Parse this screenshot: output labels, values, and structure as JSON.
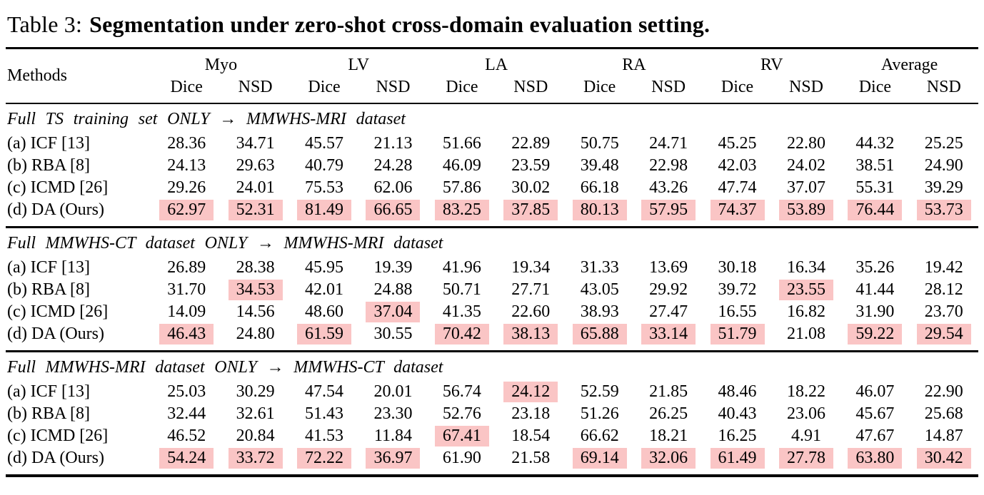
{
  "title": {
    "prefix": "Table 3:",
    "main": "Segmentation under zero-shot cross-domain evaluation setting."
  },
  "header": {
    "methods": "Methods",
    "groups": [
      "Myo",
      "LV",
      "LA",
      "RA",
      "RV",
      "Average"
    ],
    "metrics": [
      "Dice",
      "NSD"
    ]
  },
  "colors": {
    "highlight": "#fac5c5",
    "rule": "#000000"
  },
  "sections": [
    {
      "caption": "Full TS training set ONLY → MMWHS-MRI dataset",
      "rows": [
        {
          "method": "(a) ICF [13]",
          "values": [
            "28.36",
            "34.71",
            "45.57",
            "21.13",
            "51.66",
            "22.89",
            "50.75",
            "24.71",
            "45.25",
            "22.80",
            "44.32",
            "25.25"
          ],
          "highlights": []
        },
        {
          "method": "(b) RBA [8]",
          "values": [
            "24.13",
            "29.63",
            "40.79",
            "24.28",
            "46.09",
            "23.59",
            "39.48",
            "22.98",
            "42.03",
            "24.02",
            "38.51",
            "24.90"
          ],
          "highlights": []
        },
        {
          "method": "(c) ICMD [26]",
          "values": [
            "29.26",
            "24.01",
            "75.53",
            "62.06",
            "57.86",
            "30.02",
            "66.18",
            "43.26",
            "47.74",
            "37.07",
            "55.31",
            "39.29"
          ],
          "highlights": []
        },
        {
          "method": "(d) DA (Ours)",
          "values": [
            "62.97",
            "52.31",
            "81.49",
            "66.65",
            "83.25",
            "37.85",
            "80.13",
            "57.95",
            "74.37",
            "53.89",
            "76.44",
            "53.73"
          ],
          "highlights": [
            0,
            1,
            2,
            3,
            4,
            5,
            6,
            7,
            8,
            9,
            10,
            11
          ]
        }
      ]
    },
    {
      "caption": "Full MMWHS-CT dataset ONLY → MMWHS-MRI dataset",
      "rows": [
        {
          "method": "(a) ICF [13]",
          "values": [
            "26.89",
            "28.38",
            "45.95",
            "19.39",
            "41.96",
            "19.34",
            "31.33",
            "13.69",
            "30.18",
            "16.34",
            "35.26",
            "19.42"
          ],
          "highlights": []
        },
        {
          "method": "(b) RBA [8]",
          "values": [
            "31.70",
            "34.53",
            "42.01",
            "24.88",
            "50.71",
            "27.71",
            "43.05",
            "29.92",
            "39.72",
            "23.55",
            "41.44",
            "28.12"
          ],
          "highlights": [
            1,
            9
          ]
        },
        {
          "method": "(c) ICMD [26]",
          "values": [
            "14.09",
            "14.56",
            "48.60",
            "37.04",
            "41.35",
            "22.60",
            "38.93",
            "27.47",
            "16.55",
            "16.82",
            "31.90",
            "23.70"
          ],
          "highlights": [
            3
          ]
        },
        {
          "method": "(d) DA (Ours)",
          "values": [
            "46.43",
            "24.80",
            "61.59",
            "30.55",
            "70.42",
            "38.13",
            "65.88",
            "33.14",
            "51.79",
            "21.08",
            "59.22",
            "29.54"
          ],
          "highlights": [
            0,
            2,
            4,
            5,
            6,
            7,
            8,
            10,
            11
          ]
        }
      ]
    },
    {
      "caption": "Full MMWHS-MRI dataset ONLY → MMWHS-CT dataset",
      "rows": [
        {
          "method": "(a) ICF [13]",
          "values": [
            "25.03",
            "30.29",
            "47.54",
            "20.01",
            "56.74",
            "24.12",
            "52.59",
            "21.85",
            "48.46",
            "18.22",
            "46.07",
            "22.90"
          ],
          "highlights": [
            5
          ]
        },
        {
          "method": "(b) RBA [8]",
          "values": [
            "32.44",
            "32.61",
            "51.43",
            "23.30",
            "52.76",
            "23.18",
            "51.26",
            "26.25",
            "40.43",
            "23.06",
            "45.67",
            "25.68"
          ],
          "highlights": []
        },
        {
          "method": "(c) ICMD [26]",
          "values": [
            "46.52",
            "20.84",
            "41.53",
            "11.84",
            "67.41",
            "18.54",
            "66.62",
            "18.21",
            "16.25",
            "4.91",
            "47.67",
            "14.87"
          ],
          "highlights": [
            4
          ]
        },
        {
          "method": "(d) DA (Ours)",
          "values": [
            "54.24",
            "33.72",
            "72.22",
            "36.97",
            "61.90",
            "21.58",
            "69.14",
            "32.06",
            "61.49",
            "27.78",
            "63.80",
            "30.42"
          ],
          "highlights": [
            0,
            1,
            2,
            3,
            6,
            7,
            8,
            9,
            10,
            11
          ]
        }
      ]
    }
  ]
}
